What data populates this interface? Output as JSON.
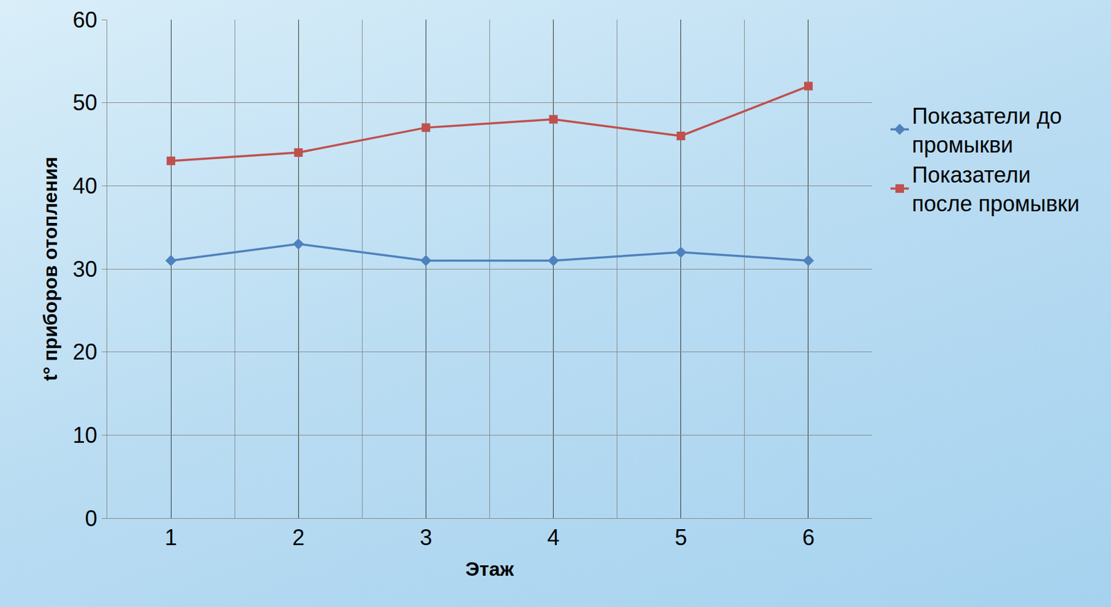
{
  "chart_data": {
    "type": "line",
    "x_label": "Этаж",
    "y_label": "t° приборов отопления",
    "categories": [
      "1",
      "2",
      "3",
      "4",
      "5",
      "6"
    ],
    "series": [
      {
        "name": "Показатели до промыкви",
        "color": "#4f81bd",
        "marker": "diamond",
        "values": [
          31,
          33,
          31,
          31,
          32,
          31
        ]
      },
      {
        "name": "Показатели после промывки",
        "color": "#c0504d",
        "marker": "square",
        "values": [
          43,
          44,
          47,
          48,
          46,
          52
        ]
      }
    ],
    "ylim": [
      0,
      60
    ],
    "yticks": [
      0,
      10,
      20,
      30,
      40,
      50,
      60
    ],
    "grid": true,
    "legend": "right"
  }
}
